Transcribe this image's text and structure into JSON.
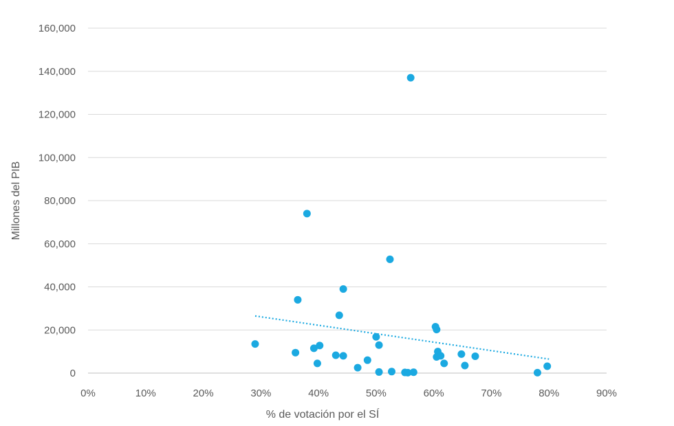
{
  "chart_data": {
    "type": "scatter",
    "title": "",
    "xlabel": "% de votación por el SÍ",
    "ylabel": "Millones del PIB",
    "xlim": [
      0,
      0.9
    ],
    "ylim": [
      0,
      160000
    ],
    "x_ticks": [
      "0%",
      "10%",
      "20%",
      "30%",
      "40%",
      "50%",
      "60%",
      "70%",
      "80%",
      "90%"
    ],
    "y_ticks": [
      "0",
      "20,000",
      "40,000",
      "60,000",
      "80,000",
      "100,000",
      "120,000",
      "140,000",
      "160,000"
    ],
    "grid": true,
    "marker_color": "#1ba9e1",
    "trendline": {
      "type": "linear",
      "color": "#1ba9e1",
      "style": "dotted",
      "x_start": 0.29,
      "y_start": 26500,
      "x_end": 0.8,
      "y_end": 6500
    },
    "points": [
      {
        "x": 0.29,
        "y": 13500
      },
      {
        "x": 0.36,
        "y": 9500
      },
      {
        "x": 0.364,
        "y": 34000
      },
      {
        "x": 0.38,
        "y": 74000
      },
      {
        "x": 0.392,
        "y": 11500
      },
      {
        "x": 0.398,
        "y": 4500
      },
      {
        "x": 0.402,
        "y": 12800
      },
      {
        "x": 0.43,
        "y": 8300
      },
      {
        "x": 0.436,
        "y": 26800
      },
      {
        "x": 0.443,
        "y": 39000
      },
      {
        "x": 0.443,
        "y": 8000
      },
      {
        "x": 0.468,
        "y": 2500
      },
      {
        "x": 0.485,
        "y": 6000
      },
      {
        "x": 0.5,
        "y": 16800
      },
      {
        "x": 0.505,
        "y": 13000
      },
      {
        "x": 0.505,
        "y": 500
      },
      {
        "x": 0.524,
        "y": 52800
      },
      {
        "x": 0.527,
        "y": 700
      },
      {
        "x": 0.55,
        "y": 300
      },
      {
        "x": 0.555,
        "y": 200
      },
      {
        "x": 0.56,
        "y": 137000
      },
      {
        "x": 0.565,
        "y": 400
      },
      {
        "x": 0.603,
        "y": 21500
      },
      {
        "x": 0.605,
        "y": 20200
      },
      {
        "x": 0.605,
        "y": 7500
      },
      {
        "x": 0.607,
        "y": 10000
      },
      {
        "x": 0.612,
        "y": 8000
      },
      {
        "x": 0.618,
        "y": 4500
      },
      {
        "x": 0.648,
        "y": 8800
      },
      {
        "x": 0.654,
        "y": 3500
      },
      {
        "x": 0.672,
        "y": 7800
      },
      {
        "x": 0.78,
        "y": 200
      },
      {
        "x": 0.797,
        "y": 3200
      }
    ]
  }
}
